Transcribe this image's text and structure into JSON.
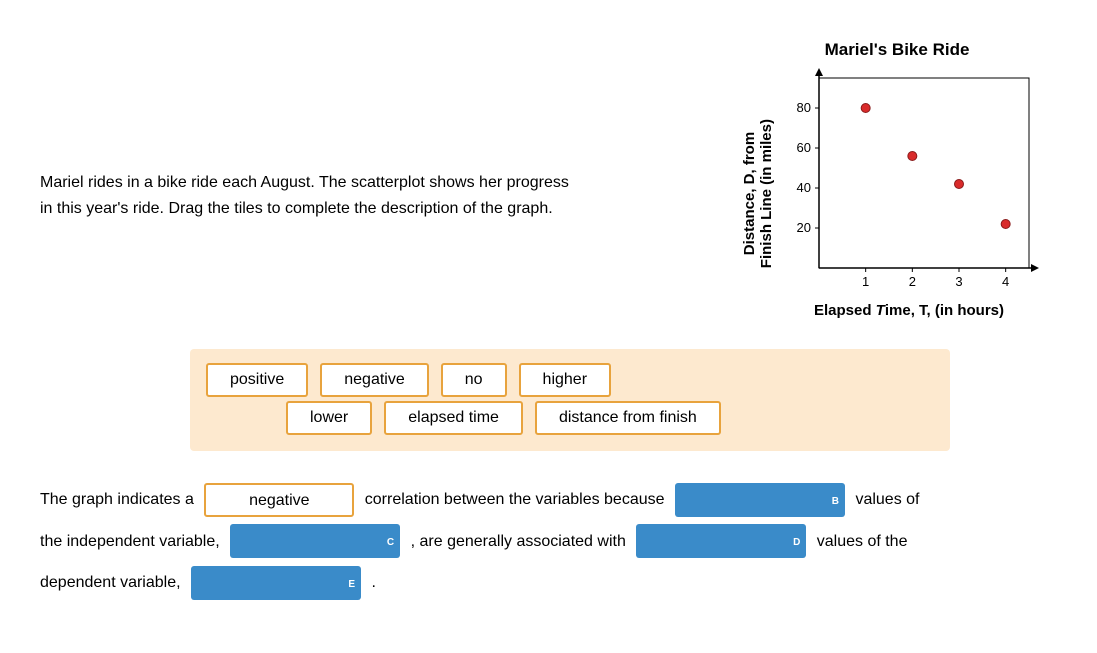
{
  "prompt": {
    "line1": "Mariel rides in a bike ride each August. The scatterplot shows her progress",
    "line2": "in this year's ride. Drag the tiles to complete the description of the graph."
  },
  "chart": {
    "title": "Mariel's Bike Ride",
    "ylabel": "Distance, D, from\nFinish Line (in miles)",
    "xlabel": "Elapsed Time, T, (in hours)",
    "xticks": [
      1,
      2,
      3,
      4
    ],
    "yticks": [
      20,
      40,
      60,
      80
    ],
    "xlim": [
      0,
      4.5
    ],
    "ylim": [
      0,
      95
    ],
    "points": [
      {
        "x": 1,
        "y": 80
      },
      {
        "x": 2,
        "y": 56
      },
      {
        "x": 3,
        "y": 42
      },
      {
        "x": 4,
        "y": 22
      }
    ],
    "point_fill": "#d92b2b",
    "point_stroke": "#8a1a1a",
    "point_radius": 4.5,
    "axis_color": "#000000",
    "background": "#ffffff"
  },
  "tiles": {
    "row1": [
      "positive",
      "negative",
      "no",
      "higher"
    ],
    "row2": [
      "lower",
      "elapsed time",
      "distance from finish"
    ],
    "tile_border": "#e8a33d",
    "tray_bg": "#fde9cf"
  },
  "sentence": {
    "s1": "The graph indicates a",
    "slotA_value": "negative",
    "s2": "correlation between the variables because",
    "slotB_letter": "B",
    "s3": "values of",
    "s4": "the independent variable,",
    "slotC_letter": "C",
    "s5": ", are generally associated with",
    "slotD_letter": "D",
    "s6": "values of the",
    "s7": "dependent variable,",
    "slotE_letter": "E",
    "s8": ".",
    "empty_slot_bg": "#3a8bc9"
  }
}
